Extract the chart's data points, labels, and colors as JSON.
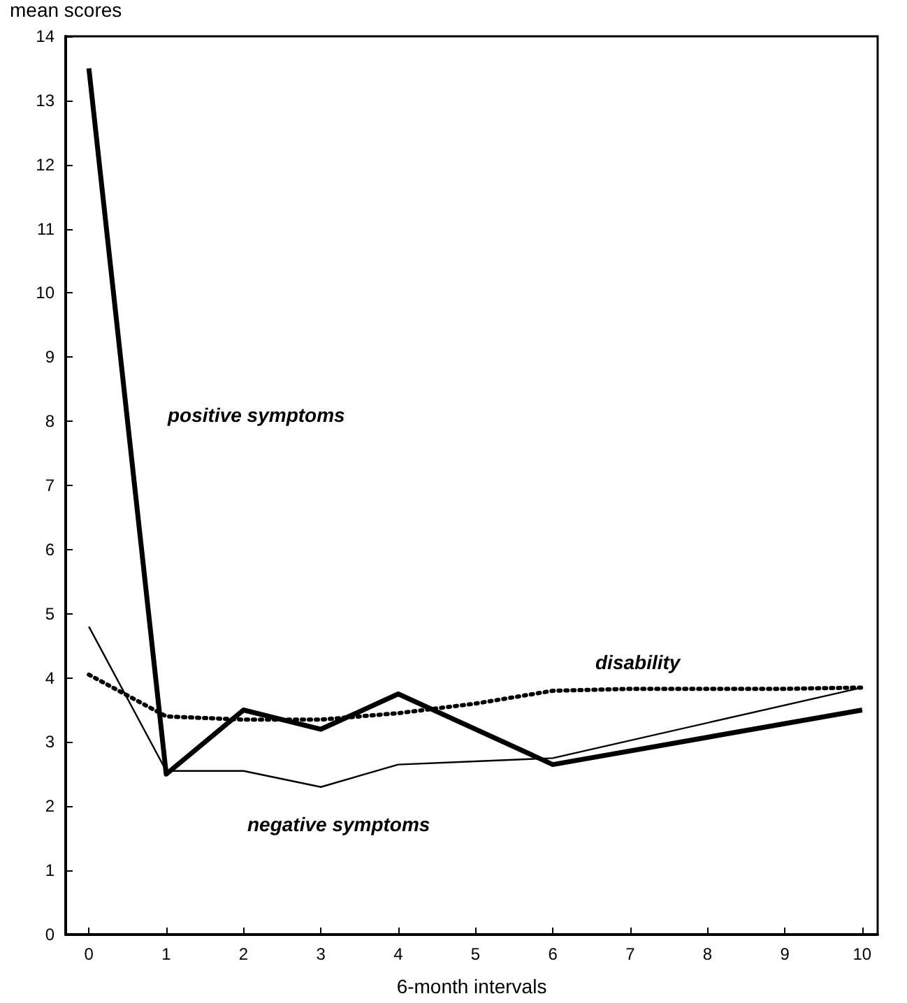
{
  "chart_data": {
    "type": "line",
    "xlabel": "6-month intervals",
    "ylabel": "mean scores",
    "xlim": [
      -0.3,
      10.2
    ],
    "xticks": [
      0,
      1,
      2,
      3,
      4,
      5,
      6,
      7,
      8,
      9,
      10
    ],
    "ylim": [
      0,
      14
    ],
    "yticks": [
      0,
      1,
      2,
      3,
      4,
      5,
      6,
      7,
      8,
      9,
      10,
      11,
      12,
      13,
      14
    ],
    "marker": "none",
    "series": [
      {
        "name": "positive symptoms",
        "color": "#000000",
        "line_style": "solid",
        "x": [
          0,
          1,
          2,
          3,
          4,
          6,
          10
        ],
        "values": [
          13.5,
          2.5,
          3.5,
          3.2,
          3.75,
          2.65,
          3.5
        ]
      },
      {
        "name": "negative symptoms",
        "color": "#000000",
        "line_style": "solid",
        "x": [
          0,
          1,
          2,
          3,
          4,
          5,
          6,
          10
        ],
        "values": [
          4.8,
          2.55,
          2.55,
          2.3,
          2.65,
          2.7,
          2.75,
          3.85
        ]
      },
      {
        "name": "disability",
        "color": "#000000",
        "line_style": "dotted",
        "x": [
          0,
          1,
          2,
          3,
          4,
          5,
          6,
          7,
          8,
          9,
          10
        ],
        "values": [
          4.05,
          3.4,
          3.35,
          3.35,
          3.45,
          3.6,
          3.8,
          3.83,
          3.83,
          3.83,
          3.85
        ]
      }
    ]
  }
}
